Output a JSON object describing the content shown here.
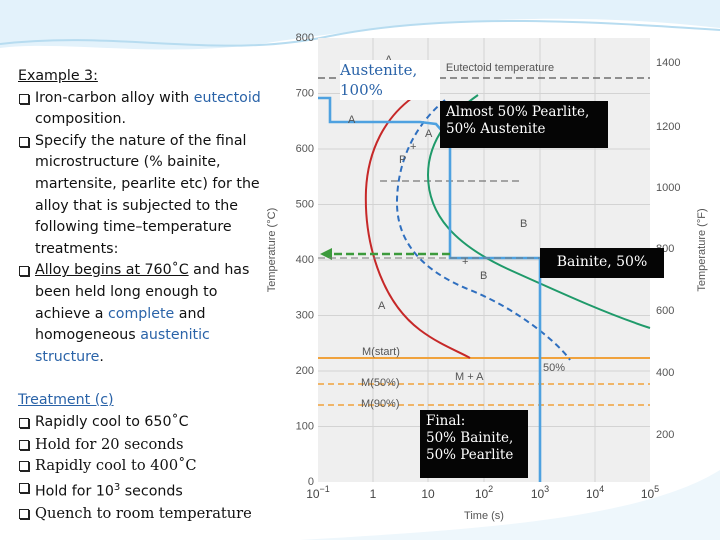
{
  "left": {
    "heading": "Example 3:",
    "bullets": [
      [
        "Iron-carbon alloy with ",
        "eutectoid",
        " composition."
      ],
      [
        "Specify the nature of the final microstructure (% bainite, martensite, pearlite etc) for the alloy that is subjected to the following time–temperature treatments:"
      ],
      [
        "Alloy begins at 760˚C",
        " and has been held long enough to achieve a ",
        "complete",
        " and homogeneous ",
        "austenitic structure",
        "."
      ]
    ],
    "treatment": {
      "heading": "Treatment (c)",
      "steps": [
        [
          "Rapidly cool to 650˚C"
        ],
        [
          "Hold for 20 seconds"
        ],
        [
          "Rapidly cool to 400˚C"
        ],
        [
          "Hold for 10",
          "3",
          " seconds"
        ],
        [
          "Quench to room temperature"
        ]
      ]
    }
  },
  "notes": {
    "austenite": "Austenite, 100%",
    "pearlite": "Almost 50% Pearlite, 50% Austenite",
    "bainite": "Bainite, 50%",
    "final": "Final:\n50% Bainite,\n50% Pearlite"
  },
  "diagram": {
    "y_label": "Temperature (°C)",
    "y2_label": "Temperature (°F)",
    "x_label": "Time (s)",
    "y_ticks": [
      "800",
      "700",
      "600",
      "500",
      "400",
      "300",
      "200",
      "100",
      "0"
    ],
    "y2_ticks": [
      "1400",
      "1200",
      "1000",
      "800",
      "600",
      "400",
      "200"
    ],
    "x_ticks": [
      {
        "base": "10",
        "exp": "−1"
      },
      {
        "base": "1"
      },
      {
        "base": "10"
      },
      {
        "base": "10",
        "exp": "2"
      },
      {
        "base": "10",
        "exp": "3"
      },
      {
        "base": "10",
        "exp": "4"
      },
      {
        "base": "10",
        "exp": "5"
      }
    ],
    "labels": [
      "Eutectoid temperature",
      "A",
      "A",
      "A",
      "+",
      "P",
      "B",
      "+",
      "B",
      "A",
      "M(start)",
      "M + A",
      "M(50%)",
      "M(90%)",
      "50%"
    ]
  }
}
